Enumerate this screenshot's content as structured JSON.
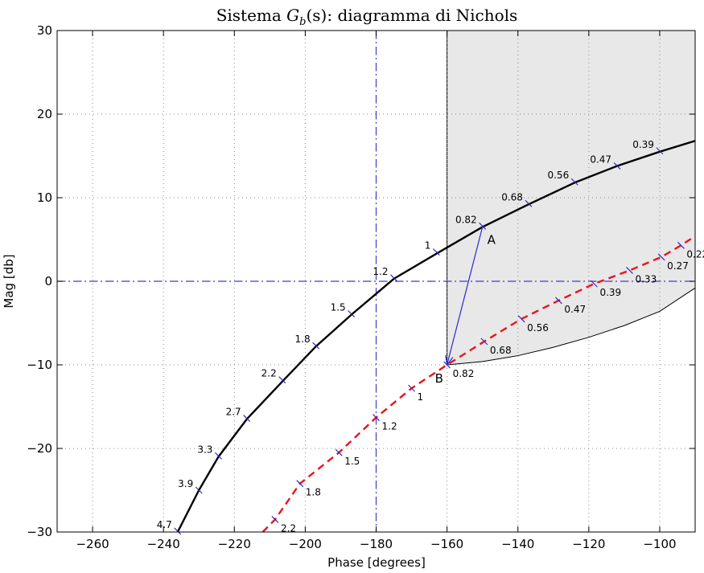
{
  "chart_data": {
    "type": "line",
    "title": "Sistema G_b(s): diagramma di Nichols",
    "title_parts": {
      "main": "Sistema ",
      "G": "G",
      "sub": "b",
      "rest": "(s): diagramma di Nichols"
    },
    "xlabel": "Phase [degrees]",
    "ylabel": "Mag [db]",
    "xlim": [
      -270,
      -90
    ],
    "ylim": [
      -30,
      30
    ],
    "xticks": [
      -260,
      -240,
      -220,
      -200,
      -180,
      -160,
      -140,
      -120,
      -100
    ],
    "yticks": [
      -30,
      -20,
      -10,
      0,
      10,
      20,
      30
    ],
    "xtick_labels": [
      "−260",
      "−240",
      "−220",
      "−200",
      "−180",
      "−160",
      "−140",
      "−120",
      "−100"
    ],
    "ytick_labels": [
      "−30",
      "−20",
      "−10",
      "0",
      "10",
      "20",
      "30"
    ],
    "grid": true,
    "reference_lines": {
      "phase": -180,
      "mag": 0,
      "color": "#3b3bd6"
    },
    "region": {
      "fill": "#e8e8e8",
      "left_phase": -160,
      "lower_boundary": [
        {
          "x": -160,
          "y": -10.0
        },
        {
          "x": -150,
          "y": -9.6
        },
        {
          "x": -140,
          "y": -8.9
        },
        {
          "x": -130,
          "y": -7.9
        },
        {
          "x": -120,
          "y": -6.7
        },
        {
          "x": -110,
          "y": -5.3
        },
        {
          "x": -100,
          "y": -3.6
        },
        {
          "x": -90,
          "y": -0.8
        }
      ]
    },
    "series": [
      {
        "color": "#000000",
        "style": "solid",
        "points": [
          {
            "x": -236,
            "y": -30
          },
          {
            "x": -230,
            "y": -25
          },
          {
            "x": -224.5,
            "y": -21
          },
          {
            "x": -216.5,
            "y": -16.5
          },
          {
            "x": -206.5,
            "y": -12
          },
          {
            "x": -197,
            "y": -7.8
          },
          {
            "x": -187,
            "y": -4
          },
          {
            "x": -175,
            "y": 0.3
          },
          {
            "x": -163,
            "y": 3.3
          },
          {
            "x": -150,
            "y": 6.5
          },
          {
            "x": -137,
            "y": 9.2
          },
          {
            "x": -124,
            "y": 11.8
          },
          {
            "x": -112,
            "y": 13.8
          },
          {
            "x": -100,
            "y": 15.5
          },
          {
            "x": -90,
            "y": 16.8
          }
        ],
        "freq_labels": [
          {
            "text": "4.7",
            "x": -236,
            "y": -29.9
          },
          {
            "text": "3.9",
            "x": -230,
            "y": -25.0
          },
          {
            "text": "3.3",
            "x": -224.5,
            "y": -20.9
          },
          {
            "text": "2.7",
            "x": -216.5,
            "y": -16.4
          },
          {
            "text": "2.2",
            "x": -206.5,
            "y": -11.8
          },
          {
            "text": "1.8",
            "x": -197,
            "y": -7.7
          },
          {
            "text": "1.5",
            "x": -187,
            "y": -3.9
          },
          {
            "text": "1.2",
            "x": -175,
            "y": 0.4
          },
          {
            "text": "1",
            "x": -163,
            "y": 3.5
          },
          {
            "text": "0.82",
            "x": -150,
            "y": 6.6
          },
          {
            "text": "0.68",
            "x": -137,
            "y": 9.3
          },
          {
            "text": "0.56",
            "x": -124,
            "y": 11.9
          },
          {
            "text": "0.47",
            "x": -112,
            "y": 13.8
          },
          {
            "text": "0.39",
            "x": -100,
            "y": 15.6
          }
        ]
      },
      {
        "color": "#e8141e",
        "style": "dashed",
        "points": [
          {
            "x": -212,
            "y": -30
          },
          {
            "x": -208.5,
            "y": -28.5
          },
          {
            "x": -201.5,
            "y": -24.2
          },
          {
            "x": -190.5,
            "y": -20.5
          },
          {
            "x": -180,
            "y": -16.3
          },
          {
            "x": -170,
            "y": -12.8
          },
          {
            "x": -160,
            "y": -10
          },
          {
            "x": -149.5,
            "y": -7.2
          },
          {
            "x": -139,
            "y": -4.5
          },
          {
            "x": -128.5,
            "y": -2.3
          },
          {
            "x": -118.5,
            "y": -0.3
          },
          {
            "x": -108.5,
            "y": 1.3
          },
          {
            "x": -99.5,
            "y": 2.9
          },
          {
            "x": -94,
            "y": 4.3
          },
          {
            "x": -90,
            "y": 5.4
          }
        ],
        "freq_labels": [
          {
            "text": "2.2",
            "x": -208.5,
            "y": -28.5
          },
          {
            "text": "1.8",
            "x": -201.5,
            "y": -24.2
          },
          {
            "text": "1.5",
            "x": -190.5,
            "y": -20.5
          },
          {
            "text": "1.2",
            "x": -180,
            "y": -16.3
          },
          {
            "text": "1",
            "x": -170,
            "y": -12.8
          },
          {
            "text": "0.82",
            "x": -160,
            "y": -10.0
          },
          {
            "text": "0.68",
            "x": -149.5,
            "y": -7.2
          },
          {
            "text": "0.56",
            "x": -139,
            "y": -4.5
          },
          {
            "text": "0.47",
            "x": -128.5,
            "y": -2.3
          },
          {
            "text": "0.39",
            "x": -118.5,
            "y": -0.3
          },
          {
            "text": "0.33",
            "x": -108.5,
            "y": 1.3
          },
          {
            "text": "0.27",
            "x": -99.5,
            "y": 2.9
          },
          {
            "text": "0.22",
            "x": -94,
            "y": 4.3
          }
        ]
      }
    ],
    "points": [
      {
        "label": "A",
        "x": -150,
        "y": 6.5
      },
      {
        "label": "B",
        "x": -160,
        "y": -10
      }
    ],
    "arrow": {
      "from": "A",
      "to": "B",
      "color": "#2a2ad0"
    }
  }
}
